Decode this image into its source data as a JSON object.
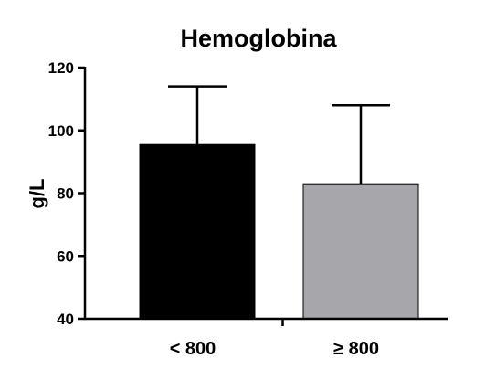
{
  "chart_data": {
    "type": "bar",
    "title": "Hemoglobina",
    "xlabel": "",
    "ylabel": "g/L",
    "categories": [
      "< 800",
      "≥ 800"
    ],
    "values": [
      95.5,
      83
    ],
    "error_upper": [
      114,
      108
    ],
    "bar_colors": [
      "#000000",
      "#a7a6ab"
    ],
    "ylim": [
      40,
      120
    ],
    "yticks": [
      40,
      60,
      80,
      100,
      120
    ],
    "ytick_labels": [
      "40",
      "60",
      "80",
      "100",
      "120"
    ],
    "grid": false,
    "legend": "none"
  }
}
